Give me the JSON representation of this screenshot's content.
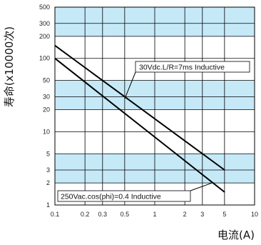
{
  "chart_data": {
    "type": "line",
    "xlabel": "电流(A)",
    "ylabel": "寿命(x10000次)",
    "x_scale": "log",
    "y_scale": "log",
    "xlim": [
      0.1,
      10
    ],
    "ylim": [
      1,
      500
    ],
    "x_ticks": [
      0.1,
      0.2,
      0.3,
      0.5,
      1,
      2,
      3,
      5,
      10
    ],
    "x_tick_labels": [
      "0.1",
      "0.2",
      "0.3",
      "0.5",
      "1",
      "2",
      "3",
      "5",
      "10"
    ],
    "y_ticks": [
      1,
      2,
      3,
      5,
      10,
      20,
      30,
      50,
      100,
      200,
      300,
      500
    ],
    "y_tick_labels": [
      "1",
      "2",
      "3",
      "5",
      "10",
      "20",
      "30",
      "50",
      "100",
      "200",
      "300",
      "500"
    ],
    "grid": true,
    "band_color": "#c6e9f8",
    "line_color": "#000000",
    "series": [
      {
        "name": "30Vdc.L/R=7ms Inductive",
        "x": [
          0.1,
          5
        ],
        "y": [
          150,
          3
        ]
      },
      {
        "name": "250Vac.cos(phi)=0.4 Inductive",
        "x": [
          0.1,
          5
        ],
        "y": [
          100,
          1.5
        ]
      }
    ],
    "annotations": [
      {
        "text": "30Vdc.L/R=7ms Inductive",
        "series": 0
      },
      {
        "text": "250Vac.cos(phi)=0.4 Inductive",
        "series": 1
      }
    ]
  }
}
